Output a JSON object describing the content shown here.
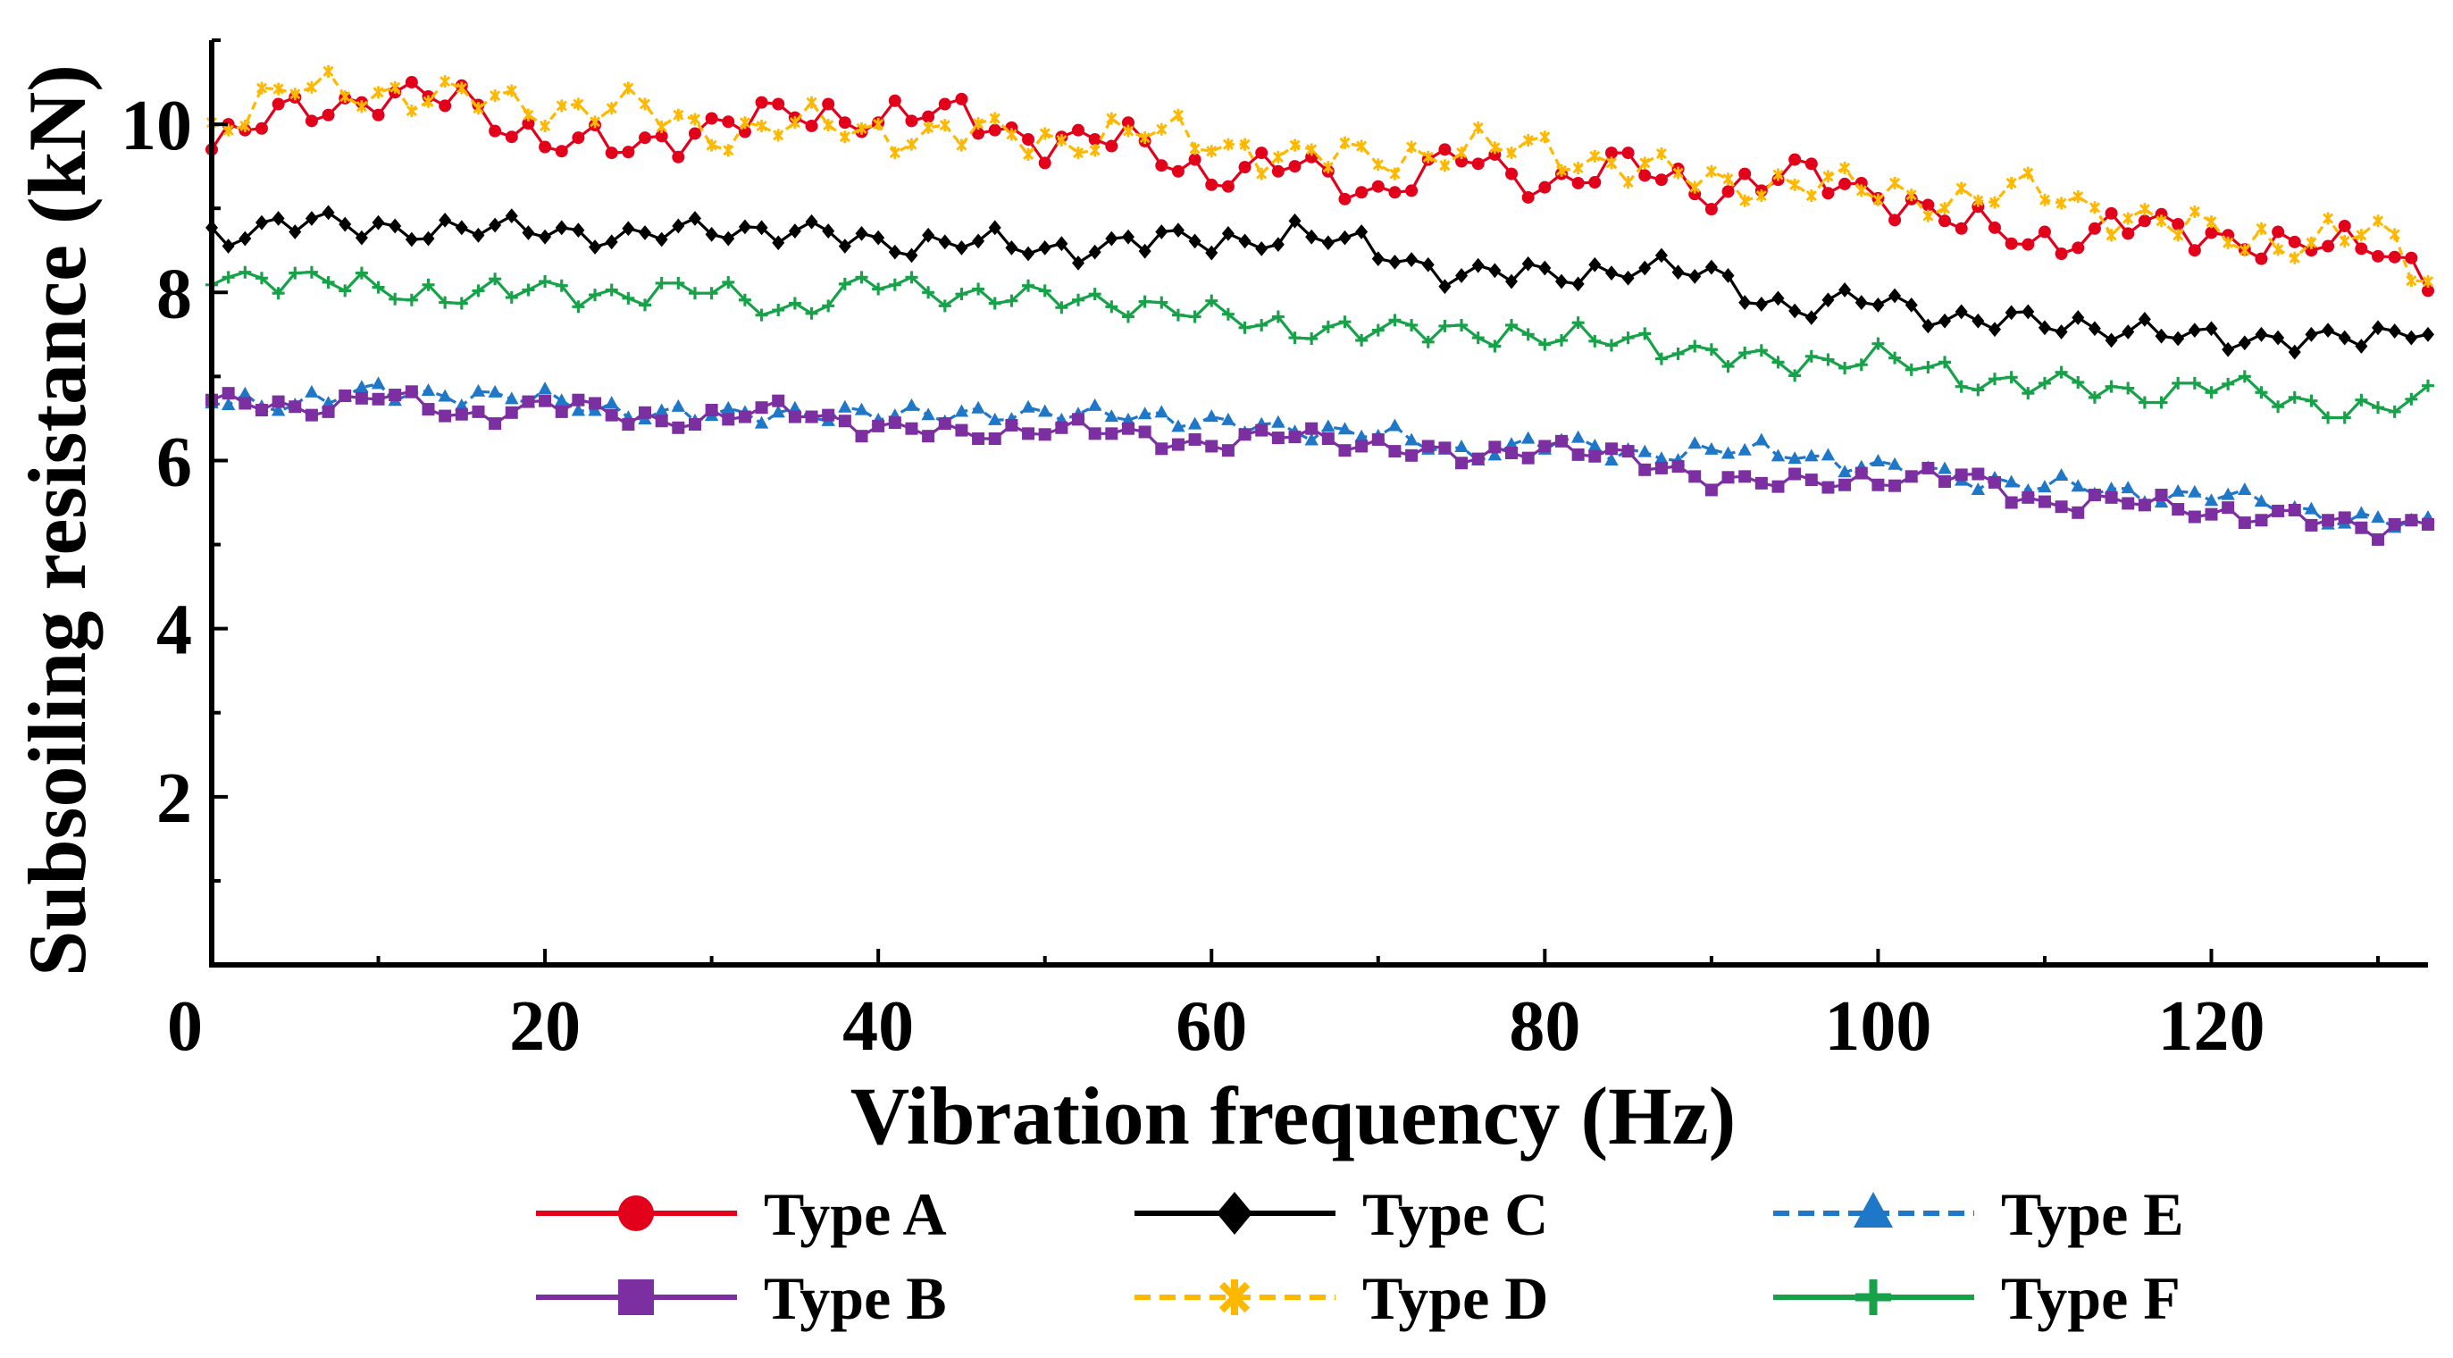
{
  "chart_data": {
    "type": "line",
    "title": "",
    "xlabel": "Vibration frequency (Hz)",
    "ylabel": "Subsoiling resistance (kN)",
    "xlim": [
      0,
      133
    ],
    "ylim": [
      0,
      11
    ],
    "x_major_ticks": [
      0,
      20,
      40,
      60,
      80,
      100,
      120
    ],
    "x_tick_labels": [
      "0",
      "20",
      "40",
      "60",
      "80",
      "100",
      "120"
    ],
    "y_major_ticks": [
      2,
      4,
      6,
      8,
      10
    ],
    "y_tick_labels": [
      "2",
      "4",
      "6",
      "8",
      "10"
    ],
    "grid": false,
    "legend_position": "bottom",
    "series": [
      {
        "name": "Type A",
        "color": "#e3001b",
        "marker": "circle",
        "dash": "solid",
        "anchors": [
          [
            0,
            9.7
          ],
          [
            5,
            10.2
          ],
          [
            10,
            10.3
          ],
          [
            15,
            10.3
          ],
          [
            20,
            9.8
          ],
          [
            25,
            9.7
          ],
          [
            30,
            10.0
          ],
          [
            35,
            10.1
          ],
          [
            40,
            10.1
          ],
          [
            45,
            10.1
          ],
          [
            50,
            9.8
          ],
          [
            55,
            9.8
          ],
          [
            60,
            9.4
          ],
          [
            65,
            9.5
          ],
          [
            70,
            9.2
          ],
          [
            75,
            9.6
          ],
          [
            80,
            9.3
          ],
          [
            85,
            9.5
          ],
          [
            90,
            9.2
          ],
          [
            95,
            9.4
          ],
          [
            100,
            9.2
          ],
          [
            105,
            8.8
          ],
          [
            110,
            8.6
          ],
          [
            115,
            8.8
          ],
          [
            120,
            8.7
          ],
          [
            125,
            8.5
          ],
          [
            130,
            8.6
          ],
          [
            133,
            8.2
          ]
        ],
        "amp": 0.28
      },
      {
        "name": "Type C",
        "color": "#000000",
        "marker": "diamond",
        "dash": "solid",
        "anchors": [
          [
            0,
            8.7
          ],
          [
            5,
            8.8
          ],
          [
            10,
            8.8
          ],
          [
            15,
            8.7
          ],
          [
            20,
            8.8
          ],
          [
            25,
            8.6
          ],
          [
            30,
            8.8
          ],
          [
            35,
            8.7
          ],
          [
            40,
            8.6
          ],
          [
            45,
            8.6
          ],
          [
            50,
            8.5
          ],
          [
            55,
            8.6
          ],
          [
            60,
            8.6
          ],
          [
            65,
            8.7
          ],
          [
            70,
            8.5
          ],
          [
            75,
            8.2
          ],
          [
            80,
            8.2
          ],
          [
            85,
            8.3
          ],
          [
            90,
            8.2
          ],
          [
            95,
            7.8
          ],
          [
            100,
            7.9
          ],
          [
            105,
            7.7
          ],
          [
            110,
            7.6
          ],
          [
            115,
            7.6
          ],
          [
            120,
            7.4
          ],
          [
            125,
            7.5
          ],
          [
            130,
            7.4
          ],
          [
            133,
            7.6
          ]
        ],
        "amp": 0.22
      },
      {
        "name": "Type E",
        "color": "#1f77c8",
        "marker": "triangle",
        "dash": "dashed",
        "anchors": [
          [
            0,
            6.7
          ],
          [
            5,
            6.7
          ],
          [
            10,
            6.8
          ],
          [
            15,
            6.8
          ],
          [
            20,
            6.7
          ],
          [
            25,
            6.6
          ],
          [
            30,
            6.5
          ],
          [
            35,
            6.6
          ],
          [
            40,
            6.5
          ],
          [
            45,
            6.6
          ],
          [
            50,
            6.5
          ],
          [
            55,
            6.6
          ],
          [
            60,
            6.4
          ],
          [
            65,
            6.4
          ],
          [
            70,
            6.3
          ],
          [
            75,
            6.1
          ],
          [
            80,
            6.2
          ],
          [
            85,
            6.1
          ],
          [
            90,
            6.1
          ],
          [
            95,
            6.1
          ],
          [
            100,
            5.9
          ],
          [
            105,
            5.8
          ],
          [
            110,
            5.7
          ],
          [
            115,
            5.6
          ],
          [
            120,
            5.6
          ],
          [
            125,
            5.4
          ],
          [
            130,
            5.3
          ],
          [
            133,
            5.2
          ]
        ],
        "amp": 0.16
      },
      {
        "name": "Type B",
        "color": "#7b2fa0",
        "marker": "square",
        "dash": "solid",
        "anchors": [
          [
            0,
            6.7
          ],
          [
            5,
            6.6
          ],
          [
            10,
            6.8
          ],
          [
            15,
            6.5
          ],
          [
            20,
            6.7
          ],
          [
            25,
            6.5
          ],
          [
            30,
            6.5
          ],
          [
            35,
            6.6
          ],
          [
            40,
            6.4
          ],
          [
            45,
            6.3
          ],
          [
            50,
            6.4
          ],
          [
            55,
            6.3
          ],
          [
            60,
            6.2
          ],
          [
            65,
            6.3
          ],
          [
            70,
            6.2
          ],
          [
            75,
            6.0
          ],
          [
            80,
            6.2
          ],
          [
            85,
            6.0
          ],
          [
            90,
            5.8
          ],
          [
            95,
            5.7
          ],
          [
            100,
            5.8
          ],
          [
            105,
            5.8
          ],
          [
            110,
            5.5
          ],
          [
            115,
            5.5
          ],
          [
            120,
            5.4
          ],
          [
            125,
            5.3
          ],
          [
            130,
            5.2
          ],
          [
            133,
            5.3
          ]
        ],
        "amp": 0.16
      },
      {
        "name": "Type D",
        "color": "#ffb800",
        "marker": "asterisk",
        "dash": "dashed",
        "anchors": [
          [
            0,
            10.0
          ],
          [
            5,
            10.4
          ],
          [
            10,
            10.4
          ],
          [
            15,
            10.3
          ],
          [
            20,
            10.2
          ],
          [
            25,
            10.2
          ],
          [
            30,
            9.9
          ],
          [
            35,
            10.0
          ],
          [
            40,
            9.9
          ],
          [
            45,
            9.9
          ],
          [
            50,
            9.8
          ],
          [
            55,
            9.9
          ],
          [
            60,
            9.8
          ],
          [
            65,
            9.6
          ],
          [
            70,
            9.6
          ],
          [
            75,
            9.7
          ],
          [
            80,
            9.7
          ],
          [
            85,
            9.5
          ],
          [
            90,
            9.3
          ],
          [
            95,
            9.3
          ],
          [
            100,
            9.2
          ],
          [
            105,
            9.1
          ],
          [
            110,
            9.2
          ],
          [
            115,
            8.9
          ],
          [
            120,
            8.7
          ],
          [
            125,
            8.6
          ],
          [
            130,
            8.7
          ],
          [
            133,
            8.2
          ]
        ],
        "amp": 0.3
      },
      {
        "name": "Type F",
        "color": "#17a24a",
        "marker": "plus",
        "dash": "solid",
        "anchors": [
          [
            0,
            8.2
          ],
          [
            5,
            8.2
          ],
          [
            10,
            8.0
          ],
          [
            15,
            8.0
          ],
          [
            20,
            8.0
          ],
          [
            25,
            8.0
          ],
          [
            30,
            8.0
          ],
          [
            35,
            7.8
          ],
          [
            40,
            8.1
          ],
          [
            45,
            8.0
          ],
          [
            50,
            7.9
          ],
          [
            55,
            7.9
          ],
          [
            60,
            7.7
          ],
          [
            65,
            7.6
          ],
          [
            70,
            7.5
          ],
          [
            75,
            7.6
          ],
          [
            80,
            7.4
          ],
          [
            85,
            7.5
          ],
          [
            90,
            7.2
          ],
          [
            95,
            7.2
          ],
          [
            100,
            7.2
          ],
          [
            105,
            7.0
          ],
          [
            110,
            6.9
          ],
          [
            115,
            6.8
          ],
          [
            120,
            6.9
          ],
          [
            125,
            6.7
          ],
          [
            130,
            6.6
          ],
          [
            133,
            6.7
          ]
        ],
        "amp": 0.22
      }
    ]
  }
}
